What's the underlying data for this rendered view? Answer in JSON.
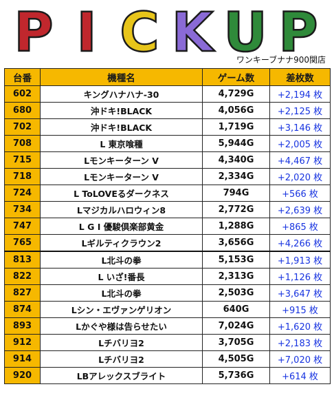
{
  "header": {
    "logo_text": "PICKUP",
    "store_name": "ワンキーブナナ900関店"
  },
  "colors": {
    "header_bg": "#f6b800",
    "diff_text": "#1733e0",
    "logo_p": "#c0272d",
    "logo_i": "#c0272d",
    "logo_c": "#e8c51a",
    "logo_k": "#8a6ad6",
    "logo_u": "#2f8a3a",
    "logo_p2": "#2f8a3a"
  },
  "table": {
    "headers": [
      "台番",
      "機種名",
      "ゲーム数",
      "差枚数"
    ],
    "rows": [
      {
        "num": "602",
        "name": "キングハナハナ-30",
        "games": "4,729G",
        "diff": "+2,194 枚"
      },
      {
        "num": "680",
        "name": "沖ドキ!BLACK",
        "games": "4,056G",
        "diff": "+2,125 枚"
      },
      {
        "num": "702",
        "name": "沖ドキ!BLACK",
        "games": "1,719G",
        "diff": "+3,146 枚"
      },
      {
        "num": "708",
        "name": "L 東京喰種",
        "games": "5,944G",
        "diff": "+2,005 枚"
      },
      {
        "num": "715",
        "name": "Lモンキーターン V",
        "games": "4,340G",
        "diff": "+4,467 枚"
      },
      {
        "num": "718",
        "name": "Lモンキーターン V",
        "games": "2,334G",
        "diff": "+2,020 枚"
      },
      {
        "num": "724",
        "name": "L ToLOVEるダークネス",
        "games": "794G",
        "diff": "+566 枚"
      },
      {
        "num": "734",
        "name": "Lマジカルハロウィン8",
        "games": "2,772G",
        "diff": "+2,639 枚"
      },
      {
        "num": "747",
        "name": "L G I 優駿倶楽部黄金",
        "games": "1,288G",
        "diff": "+865 枚"
      },
      {
        "num": "765",
        "name": "Lギルティクラウン2",
        "games": "3,656G",
        "diff": "+4,266 枚"
      },
      {
        "num": "813",
        "name": "L北斗の拳",
        "games": "5,153G",
        "diff": "+1,913 枚"
      },
      {
        "num": "822",
        "name": "L いざ!番長",
        "games": "2,313G",
        "diff": "+1,126 枚"
      },
      {
        "num": "827",
        "name": "L北斗の拳",
        "games": "2,503G",
        "diff": "+3,647 枚"
      },
      {
        "num": "874",
        "name": "Lシン・エヴァンゲリオン",
        "games": "640G",
        "diff": "+915 枚"
      },
      {
        "num": "893",
        "name": "Lかぐや様は告らせたい",
        "games": "7,024G",
        "diff": "+1,620 枚"
      },
      {
        "num": "912",
        "name": "Lチバリヨ2",
        "games": "3,705G",
        "diff": "+2,183 枚"
      },
      {
        "num": "914",
        "name": "Lチバリヨ2",
        "games": "4,505G",
        "diff": "+7,020 枚"
      },
      {
        "num": "920",
        "name": "LBアレックスブライト",
        "games": "5,736G",
        "diff": "+614 枚"
      }
    ]
  }
}
